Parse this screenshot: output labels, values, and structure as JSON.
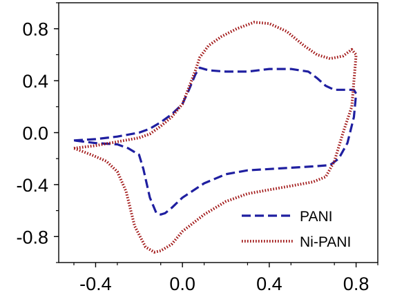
{
  "chart_data": {
    "type": "line",
    "title": "",
    "xlabel": "",
    "ylabel": "",
    "xlim": [
      -0.57,
      0.9
    ],
    "ylim": [
      -1.0,
      1.0
    ],
    "xticks": [
      -0.4,
      0.0,
      0.4,
      0.8
    ],
    "xtick_labels": [
      "-0.4",
      "0.0",
      "0.4",
      "0.8"
    ],
    "yticks": [
      -0.8,
      -0.4,
      0.0,
      0.4,
      0.8
    ],
    "ytick_labels": [
      "-0.8",
      "-0.4",
      "0.0",
      "0.4",
      "0.8"
    ],
    "grid": false,
    "legend_position": "bottom-right",
    "series": [
      {
        "name": "PANI",
        "color": "#1f1fa0",
        "style": "dashed",
        "points": [
          [
            -0.5,
            -0.06
          ],
          [
            -0.4,
            -0.05
          ],
          [
            -0.3,
            -0.03
          ],
          [
            -0.2,
            0.0
          ],
          [
            -0.15,
            0.03
          ],
          [
            -0.1,
            0.08
          ],
          [
            -0.05,
            0.14
          ],
          [
            0.0,
            0.22
          ],
          [
            0.03,
            0.33
          ],
          [
            0.06,
            0.45
          ],
          [
            0.08,
            0.5
          ],
          [
            0.12,
            0.48
          ],
          [
            0.2,
            0.47
          ],
          [
            0.3,
            0.47
          ],
          [
            0.4,
            0.49
          ],
          [
            0.5,
            0.49
          ],
          [
            0.58,
            0.47
          ],
          [
            0.62,
            0.42
          ],
          [
            0.66,
            0.36
          ],
          [
            0.7,
            0.33
          ],
          [
            0.76,
            0.33
          ],
          [
            0.79,
            0.33
          ],
          [
            0.8,
            0.3
          ],
          [
            0.79,
            0.12
          ],
          [
            0.76,
            -0.08
          ],
          [
            0.72,
            -0.2
          ],
          [
            0.68,
            -0.25
          ],
          [
            0.6,
            -0.26
          ],
          [
            0.5,
            -0.27
          ],
          [
            0.4,
            -0.28
          ],
          [
            0.3,
            -0.29
          ],
          [
            0.2,
            -0.32
          ],
          [
            0.1,
            -0.39
          ],
          [
            0.0,
            -0.5
          ],
          [
            -0.05,
            -0.58
          ],
          [
            -0.08,
            -0.62
          ],
          [
            -0.1,
            -0.63
          ],
          [
            -0.12,
            -0.62
          ],
          [
            -0.15,
            -0.5
          ],
          [
            -0.18,
            -0.28
          ],
          [
            -0.2,
            -0.17
          ],
          [
            -0.25,
            -0.12
          ],
          [
            -0.3,
            -0.09
          ],
          [
            -0.4,
            -0.08
          ],
          [
            -0.5,
            -0.06
          ]
        ]
      },
      {
        "name": "Ni-PANI",
        "color": "#a01515",
        "style": "dotted",
        "points": [
          [
            -0.5,
            -0.12
          ],
          [
            -0.4,
            -0.1
          ],
          [
            -0.3,
            -0.07
          ],
          [
            -0.2,
            -0.04
          ],
          [
            -0.15,
            -0.01
          ],
          [
            -0.1,
            0.05
          ],
          [
            -0.05,
            0.12
          ],
          [
            0.0,
            0.22
          ],
          [
            0.03,
            0.35
          ],
          [
            0.06,
            0.48
          ],
          [
            0.08,
            0.58
          ],
          [
            0.12,
            0.67
          ],
          [
            0.18,
            0.74
          ],
          [
            0.25,
            0.8
          ],
          [
            0.33,
            0.85
          ],
          [
            0.4,
            0.84
          ],
          [
            0.48,
            0.78
          ],
          [
            0.56,
            0.67
          ],
          [
            0.62,
            0.6
          ],
          [
            0.68,
            0.57
          ],
          [
            0.74,
            0.59
          ],
          [
            0.78,
            0.64
          ],
          [
            0.8,
            0.6
          ],
          [
            0.78,
            0.2
          ],
          [
            0.74,
            0.0
          ],
          [
            0.7,
            -0.22
          ],
          [
            0.66,
            -0.34
          ],
          [
            0.6,
            -0.38
          ],
          [
            0.5,
            -0.41
          ],
          [
            0.4,
            -0.44
          ],
          [
            0.3,
            -0.47
          ],
          [
            0.2,
            -0.53
          ],
          [
            0.1,
            -0.63
          ],
          [
            0.0,
            -0.76
          ],
          [
            -0.05,
            -0.86
          ],
          [
            -0.1,
            -0.91
          ],
          [
            -0.13,
            -0.92
          ],
          [
            -0.17,
            -0.88
          ],
          [
            -0.22,
            -0.72
          ],
          [
            -0.26,
            -0.45
          ],
          [
            -0.3,
            -0.3
          ],
          [
            -0.35,
            -0.22
          ],
          [
            -0.42,
            -0.17
          ],
          [
            -0.5,
            -0.12
          ]
        ]
      }
    ]
  }
}
